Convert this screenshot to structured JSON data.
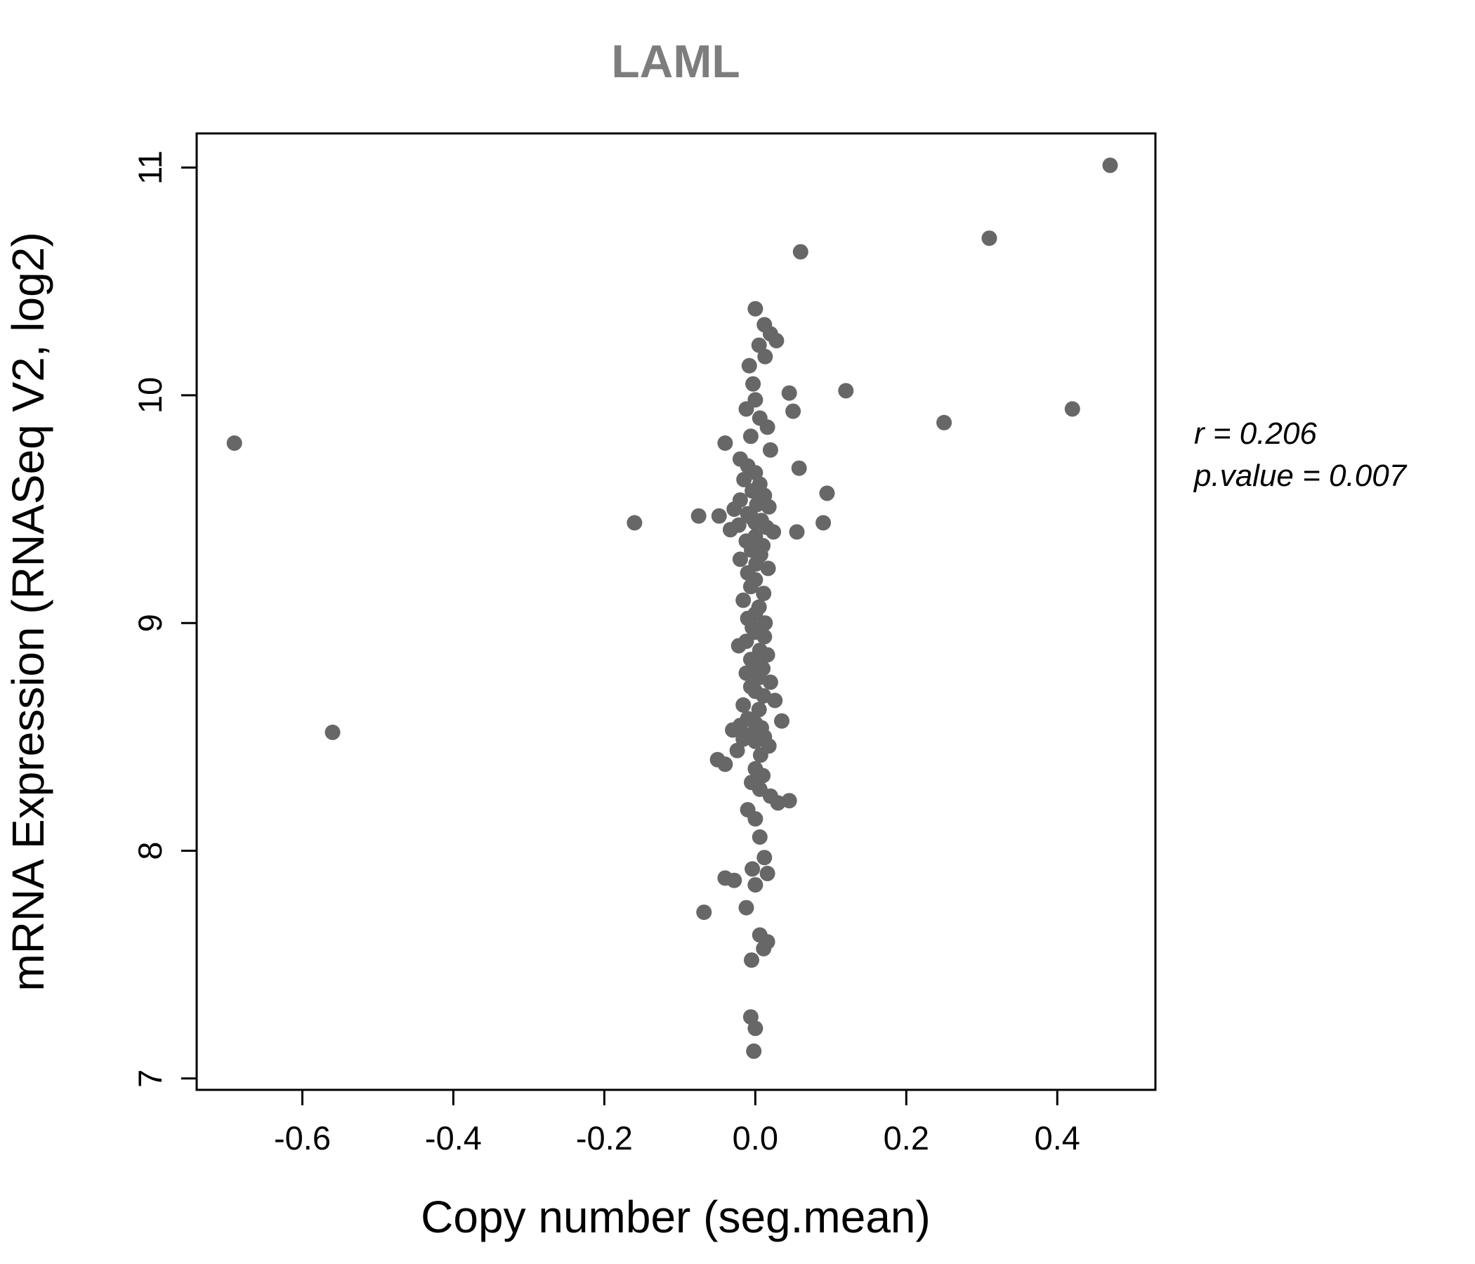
{
  "chart_data": {
    "type": "scatter",
    "title": "LAML",
    "xlabel": "Copy number (seg.mean)",
    "ylabel": "mRNA Expression (RNASeq V2, log2)",
    "xlim": [
      -0.74,
      0.53
    ],
    "ylim": [
      6.95,
      11.15
    ],
    "x_tick_values": [
      -0.6,
      -0.4,
      -0.2,
      0.0,
      0.2,
      0.4
    ],
    "x_tick_labels": [
      "-0.6",
      "-0.4",
      "-0.2",
      "0.0",
      "0.2",
      "0.4"
    ],
    "y_tick_values": [
      7,
      8,
      9,
      10,
      11
    ],
    "y_tick_labels": [
      "7",
      "8",
      "9",
      "10",
      "11"
    ],
    "grid": false,
    "legend": "none",
    "point_color": "#676767",
    "title_color": "#7d7d7d",
    "annotations": {
      "r_label": "r = 0.206",
      "p_label": "p.value = 0.007"
    },
    "points": [
      [
        -0.69,
        9.79
      ],
      [
        -0.56,
        8.52
      ],
      [
        0.47,
        11.01
      ],
      [
        0.31,
        10.69
      ],
      [
        0.06,
        10.63
      ],
      [
        0.42,
        9.94
      ],
      [
        0.25,
        9.88
      ],
      [
        0.12,
        10.02
      ],
      [
        0.045,
        10.01
      ],
      [
        0.05,
        9.93
      ],
      [
        0.058,
        9.68
      ],
      [
        0.095,
        9.57
      ],
      [
        0.09,
        9.44
      ],
      [
        0.055,
        9.4
      ],
      [
        -0.16,
        9.44
      ],
      [
        -0.075,
        9.47
      ],
      [
        0.0,
        10.38
      ],
      [
        0.012,
        10.31
      ],
      [
        0.02,
        10.27
      ],
      [
        0.028,
        10.24
      ],
      [
        0.005,
        10.22
      ],
      [
        0.013,
        10.17
      ],
      [
        -0.008,
        10.13
      ],
      [
        -0.003,
        10.05
      ],
      [
        0.0,
        9.98
      ],
      [
        -0.012,
        9.94
      ],
      [
        0.006,
        9.9
      ],
      [
        0.016,
        9.86
      ],
      [
        -0.006,
        9.82
      ],
      [
        -0.04,
        9.79
      ],
      [
        0.02,
        9.76
      ],
      [
        -0.02,
        9.72
      ],
      [
        -0.01,
        9.69
      ],
      [
        0.0,
        9.66
      ],
      [
        -0.015,
        9.63
      ],
      [
        0.006,
        9.61
      ],
      [
        -0.004,
        9.58
      ],
      [
        0.012,
        9.56
      ],
      [
        -0.02,
        9.54
      ],
      [
        0.002,
        9.52
      ],
      [
        0.018,
        9.51
      ],
      [
        -0.028,
        9.5
      ],
      [
        -0.01,
        9.48
      ],
      [
        -0.048,
        9.47
      ],
      [
        -0.004,
        9.46
      ],
      [
        0.008,
        9.45
      ],
      [
        0.0,
        9.44
      ],
      [
        -0.022,
        9.43
      ],
      [
        0.015,
        9.42
      ],
      [
        -0.033,
        9.41
      ],
      [
        0.024,
        9.4
      ],
      [
        0.0,
        9.38
      ],
      [
        -0.012,
        9.36
      ],
      [
        0.01,
        9.34
      ],
      [
        -0.005,
        9.32
      ],
      [
        0.007,
        9.3
      ],
      [
        -0.02,
        9.28
      ],
      [
        0.001,
        9.26
      ],
      [
        0.017,
        9.24
      ],
      [
        -0.01,
        9.22
      ],
      [
        0.0,
        9.19
      ],
      [
        -0.006,
        9.16
      ],
      [
        0.011,
        9.13
      ],
      [
        -0.016,
        9.1
      ],
      [
        0.005,
        9.07
      ],
      [
        0.0,
        9.04
      ],
      [
        -0.01,
        9.02
      ],
      [
        0.013,
        9.0
      ],
      [
        -0.004,
        8.98
      ],
      [
        0.0,
        8.96
      ],
      [
        0.012,
        8.94
      ],
      [
        -0.012,
        8.92
      ],
      [
        -0.022,
        8.9
      ],
      [
        0.006,
        8.88
      ],
      [
        0.016,
        8.86
      ],
      [
        -0.006,
        8.84
      ],
      [
        0.0,
        8.82
      ],
      [
        0.01,
        8.8
      ],
      [
        -0.012,
        8.78
      ],
      [
        0.005,
        8.76
      ],
      [
        0.02,
        8.74
      ],
      [
        -0.006,
        8.72
      ],
      [
        0.0,
        8.7
      ],
      [
        0.011,
        8.68
      ],
      [
        0.026,
        8.66
      ],
      [
        -0.016,
        8.64
      ],
      [
        0.005,
        8.62
      ],
      [
        0.035,
        8.57
      ],
      [
        -0.01,
        8.58
      ],
      [
        0.0,
        8.56
      ],
      [
        -0.02,
        8.55
      ],
      [
        0.008,
        8.54
      ],
      [
        -0.03,
        8.53
      ],
      [
        0.004,
        8.52
      ],
      [
        -0.006,
        8.51
      ],
      [
        0.012,
        8.5
      ],
      [
        -0.016,
        8.49
      ],
      [
        0.0,
        8.48
      ],
      [
        0.018,
        8.46
      ],
      [
        -0.024,
        8.44
      ],
      [
        0.007,
        8.42
      ],
      [
        -0.05,
        8.4
      ],
      [
        -0.04,
        8.38
      ],
      [
        0.0,
        8.36
      ],
      [
        0.01,
        8.33
      ],
      [
        -0.005,
        8.3
      ],
      [
        0.006,
        8.27
      ],
      [
        0.045,
        8.22
      ],
      [
        0.02,
        8.24
      ],
      [
        0.03,
        8.21
      ],
      [
        -0.01,
        8.18
      ],
      [
        0.0,
        8.14
      ],
      [
        0.006,
        8.06
      ],
      [
        0.012,
        7.97
      ],
      [
        -0.004,
        7.92
      ],
      [
        0.016,
        7.9
      ],
      [
        -0.04,
        7.88
      ],
      [
        -0.028,
        7.87
      ],
      [
        0.0,
        7.85
      ],
      [
        -0.012,
        7.75
      ],
      [
        -0.068,
        7.73
      ],
      [
        0.006,
        7.63
      ],
      [
        0.016,
        7.6
      ],
      [
        0.011,
        7.57
      ],
      [
        -0.005,
        7.52
      ],
      [
        -0.006,
        7.27
      ],
      [
        0.0,
        7.22
      ],
      [
        -0.002,
        7.12
      ]
    ]
  }
}
